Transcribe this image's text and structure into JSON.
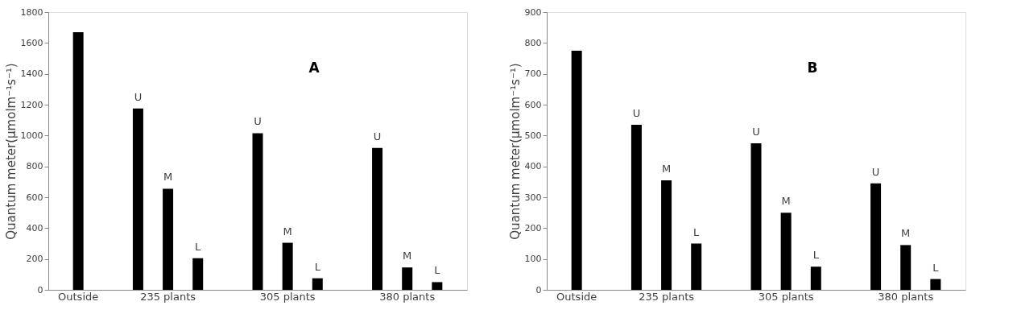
{
  "chart_data": [
    {
      "type": "bar",
      "ylabel": "Quantum meter(μmolm⁻¹s⁻¹)",
      "annotations": [
        "A"
      ],
      "categories": [
        "Outside",
        null,
        null,
        "235 plants",
        null,
        null,
        null,
        "305 plants",
        null,
        null,
        null,
        "380 plants",
        null
      ],
      "series": [
        {
          "color": "#000000",
          "values": [
            1670,
            null,
            1175,
            655,
            205,
            null,
            1015,
            305,
            75,
            null,
            920,
            145,
            50
          ],
          "value_labels": [
            null,
            null,
            "U",
            "M",
            "L",
            null,
            "U",
            "M",
            "L",
            null,
            "U",
            "M",
            "L"
          ]
        }
      ],
      "ylim": [
        0,
        1800
      ],
      "yticks": [
        0,
        200,
        400,
        600,
        800,
        1000,
        1200,
        1400,
        1600,
        1800
      ],
      "grid": false
    },
    {
      "type": "bar",
      "ylabel": "Quantum meter(μmolm⁻¹s⁻¹)",
      "annotations": [
        "B"
      ],
      "categories": [
        "Outside",
        null,
        null,
        "235 plants",
        null,
        null,
        null,
        "305 plants",
        null,
        null,
        null,
        "380 plants",
        null
      ],
      "series": [
        {
          "color": "#000000",
          "values": [
            775,
            null,
            535,
            355,
            150,
            null,
            475,
            250,
            75,
            null,
            345,
            145,
            35
          ],
          "value_labels": [
            null,
            null,
            "U",
            "M",
            "L",
            null,
            "U",
            "M",
            "L",
            null,
            "U",
            "M",
            "L"
          ]
        }
      ],
      "ylim": [
        0,
        900
      ],
      "yticks": [
        0,
        100,
        200,
        300,
        400,
        500,
        600,
        700,
        800,
        900
      ],
      "grid": false
    }
  ]
}
